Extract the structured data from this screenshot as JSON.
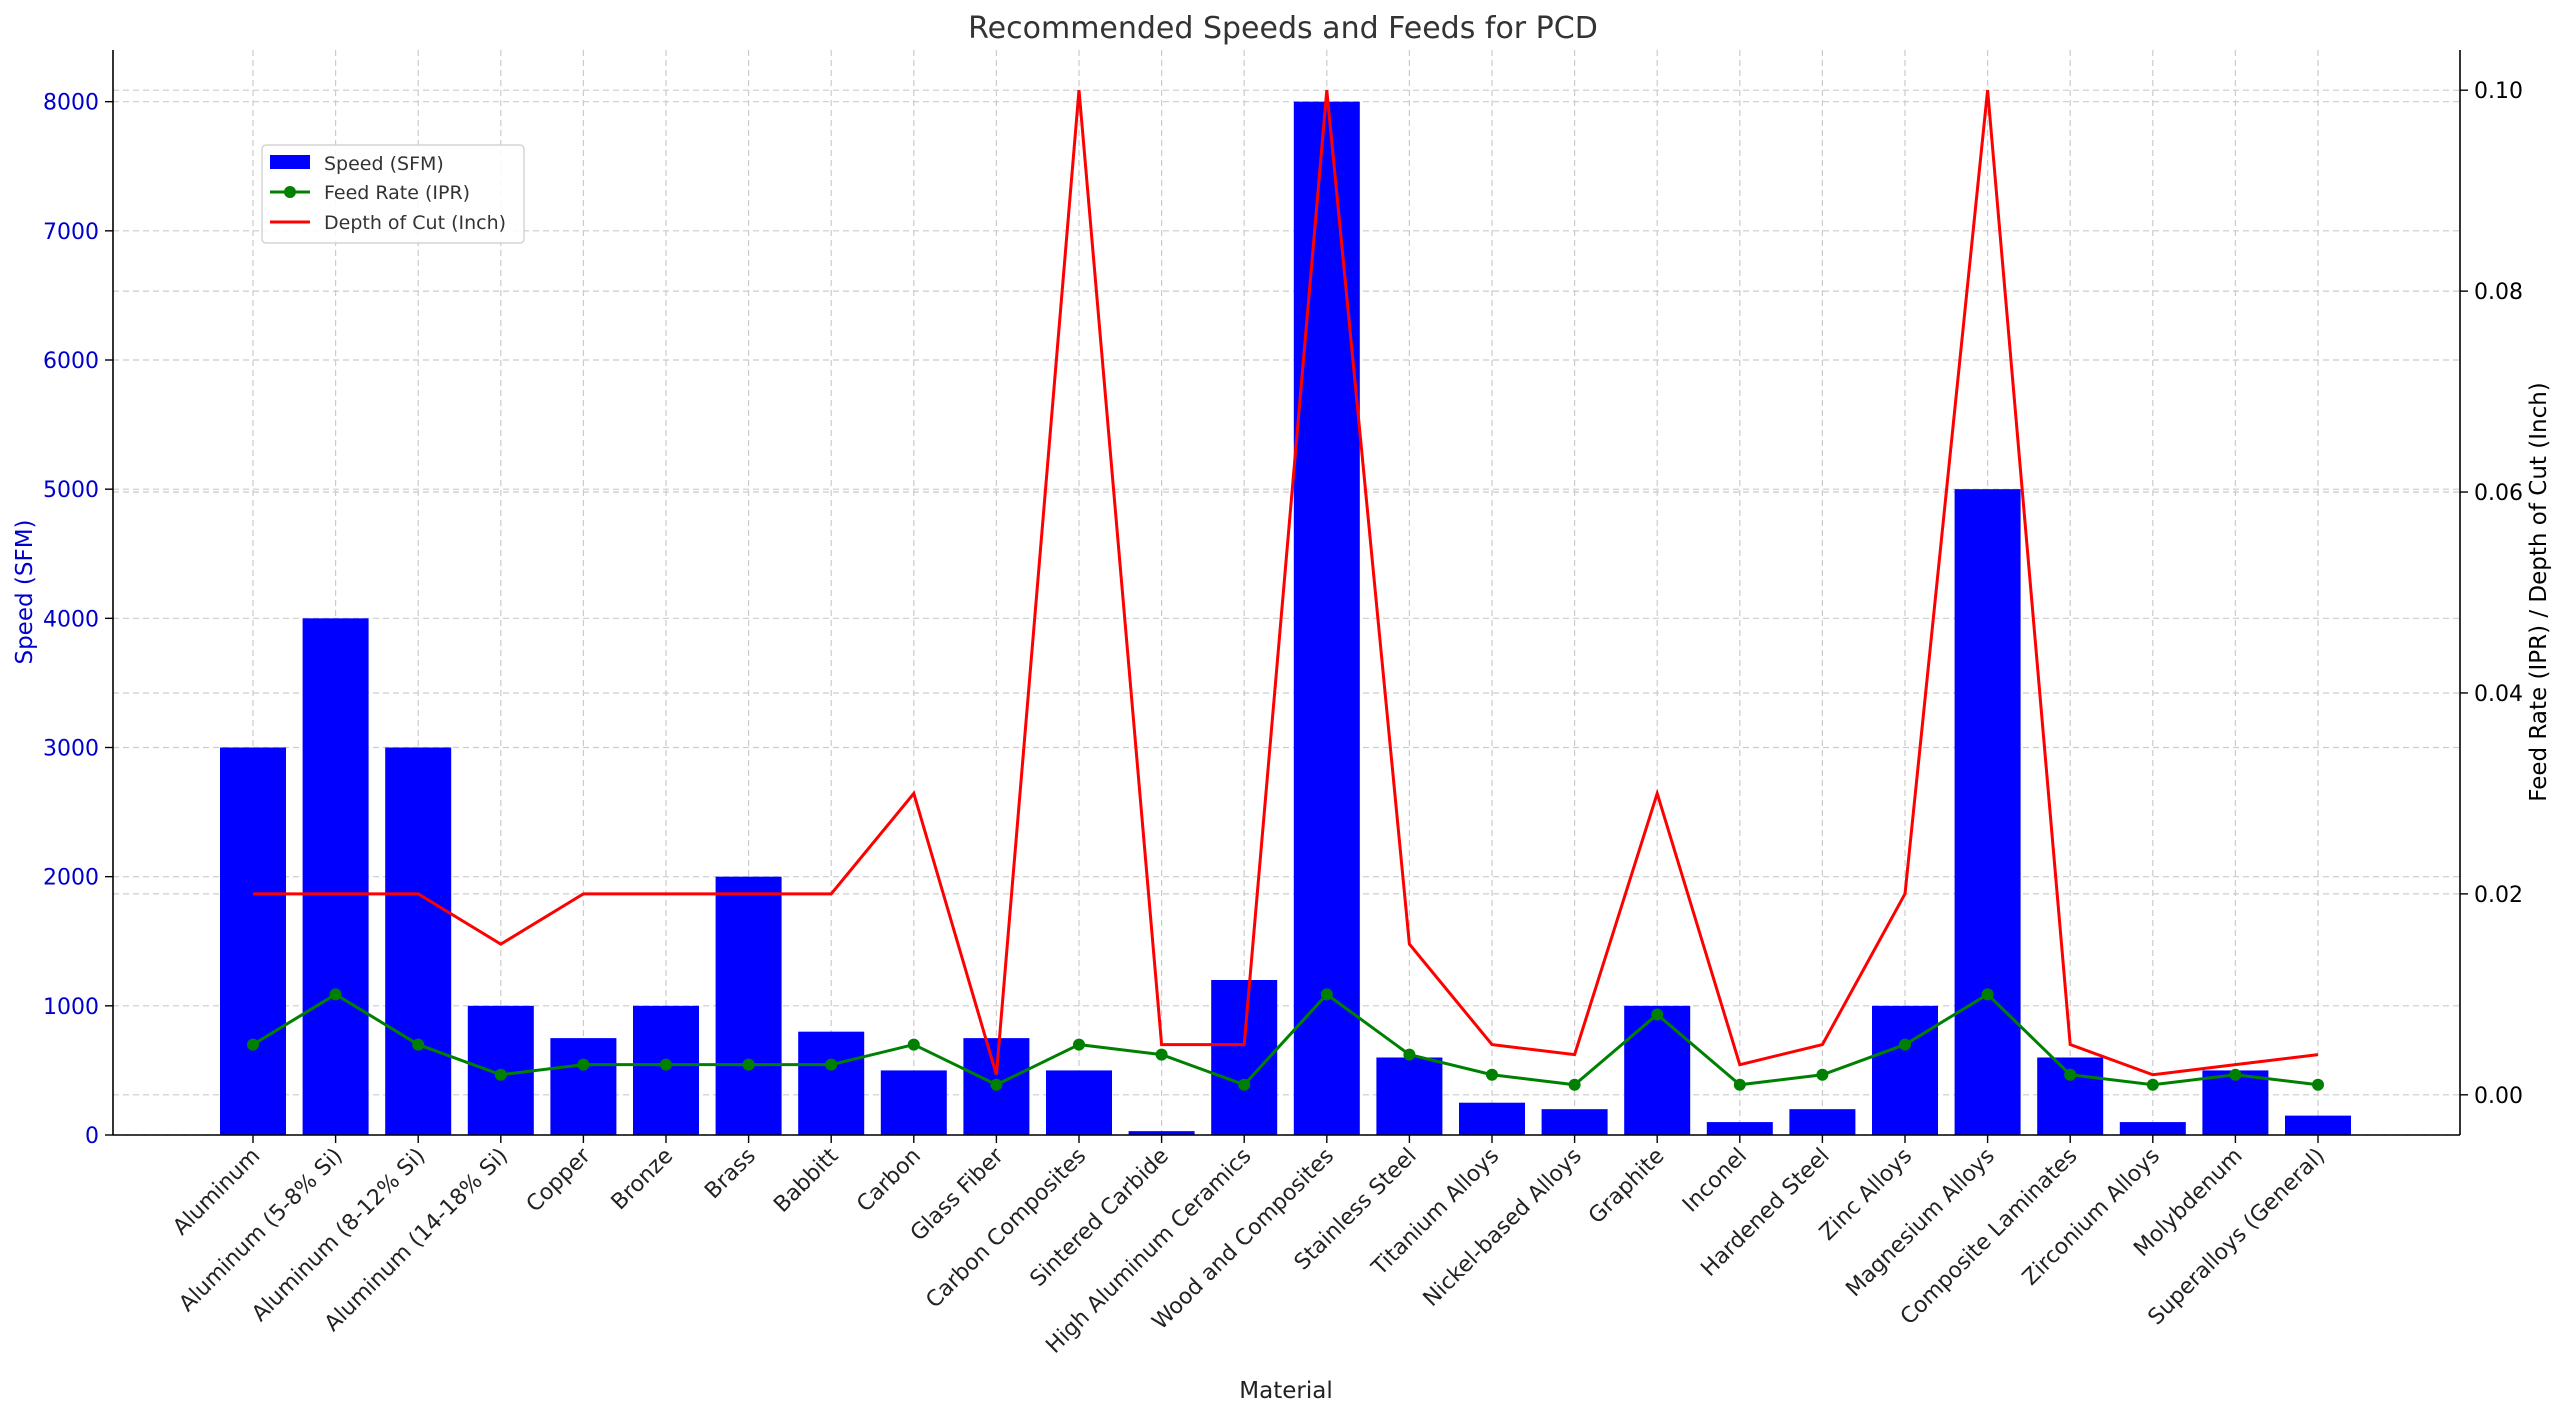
{
  "chart_data": {
    "type": "bar",
    "title": "Recommended Speeds and Feeds for PCD",
    "xlabel": "Material",
    "ylabel": "Speed (SFM)",
    "y2label": "Feed Rate (IPR) / Depth of Cut (Inch)",
    "categories": [
      "Aluminum",
      "Aluminum (5-8% Si)",
      "Aluminum (8-12% Si)",
      "Aluminum (14-18% Si)",
      "Copper",
      "Bronze",
      "Brass",
      "Babbitt",
      "Carbon",
      "Glass Fiber",
      "Carbon Composites",
      "Sintered Carbide",
      "High Aluminum Ceramics",
      "Wood and Composites",
      "Stainless Steel",
      "Titanium Alloys",
      "Nickel-based Alloys",
      "Graphite",
      "Inconel",
      "Hardened Steel",
      "Zinc Alloys",
      "Magnesium Alloys",
      "Composite Laminates",
      "Zirconium Alloys",
      "Molybdenum",
      "Superalloys (General)"
    ],
    "series": [
      {
        "name": "Speed (SFM)",
        "type": "bar",
        "axis": "left",
        "color": "#0000ff",
        "values": [
          3000,
          4000,
          3000,
          1000,
          750,
          1000,
          2000,
          800,
          500,
          750,
          500,
          30,
          1200,
          8000,
          600,
          250,
          200,
          1000,
          100,
          200,
          1000,
          5000,
          600,
          100,
          500,
          150
        ]
      },
      {
        "name": "Feed Rate (IPR)",
        "type": "line",
        "marker": "circle",
        "axis": "right",
        "color": "#008000",
        "values": [
          0.005,
          0.01,
          0.005,
          0.002,
          0.003,
          0.003,
          0.003,
          0.003,
          0.005,
          0.001,
          0.005,
          0.004,
          0.001,
          0.01,
          0.004,
          0.002,
          0.001,
          0.008,
          0.001,
          0.002,
          0.005,
          0.01,
          0.002,
          0.001,
          0.002,
          0.001
        ]
      },
      {
        "name": "Depth of Cut (Inch)",
        "type": "line",
        "axis": "right",
        "color": "#ff0000",
        "values": [
          0.02,
          0.02,
          0.02,
          0.015,
          0.02,
          0.02,
          0.02,
          0.02,
          0.03,
          0.002,
          0.1,
          0.005,
          0.005,
          0.1,
          0.015,
          0.005,
          0.004,
          0.03,
          0.003,
          0.005,
          0.02,
          0.1,
          0.005,
          0.002,
          0.003,
          0.004
        ]
      }
    ],
    "ylim": [
      0,
      8400
    ],
    "y2lim": [
      -0.004,
      0.104
    ],
    "yticks": [
      0,
      1000,
      2000,
      3000,
      4000,
      5000,
      6000,
      7000,
      8000
    ],
    "y2ticks": [
      "0.00",
      "0.02",
      "0.04",
      "0.06",
      "0.08",
      "0.10"
    ],
    "grid": true,
    "legend_position": "top-left",
    "colors": {
      "left_axis_text": "#0000cc",
      "right_axis_text": "#000000",
      "grid": "#cccccc"
    }
  }
}
